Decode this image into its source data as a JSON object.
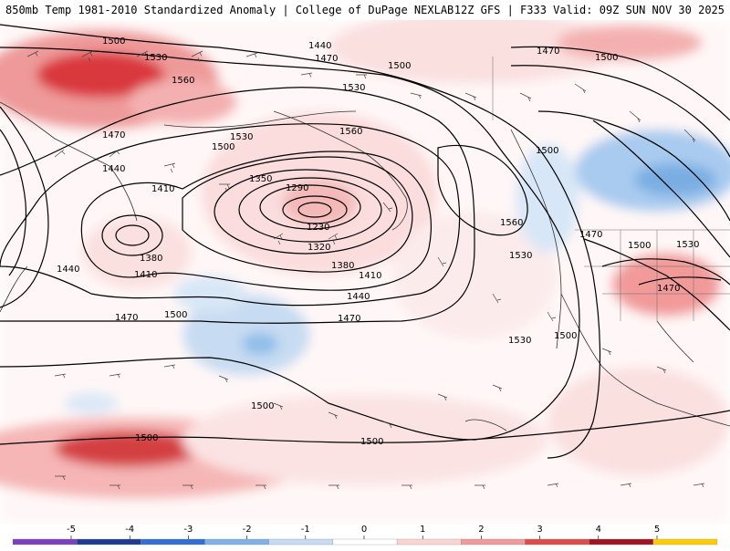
{
  "header": {
    "title_left": "850mb Temp 1981-2010 Standardized Anomaly | College of DuPage NEXLAB",
    "title_right": "12Z GFS | F333 Valid: 09Z SUN NOV 30 2025"
  },
  "colorbar": {
    "labels": [
      "-5",
      "-4",
      "-3",
      "-2",
      "-1",
      "0",
      "1",
      "2",
      "3",
      "4",
      "5"
    ],
    "colors": [
      "#7b3fbf",
      "#1f3a93",
      "#2f6fd6",
      "#7fb2e8",
      "#c7dcf2",
      "#ffffff",
      "#fbd3d3",
      "#f29a9a",
      "#e04a4a",
      "#a3121f",
      "#ffcc00"
    ]
  },
  "contour_labels": [
    "1500",
    "1530",
    "1440",
    "1470",
    "1500",
    "1470",
    "1500",
    "1560",
    "1530",
    "1470",
    "1560",
    "1530",
    "1500",
    "1500",
    "1440",
    "1410",
    "1350",
    "1290",
    "1230",
    "1320",
    "1380",
    "1410",
    "1440",
    "1470",
    "1380",
    "1410",
    "1440",
    "1470",
    "1500",
    "1500",
    "1560",
    "1530",
    "1530",
    "1500",
    "1470",
    "1500",
    "1530",
    "1470",
    "1500",
    "1500"
  ]
}
